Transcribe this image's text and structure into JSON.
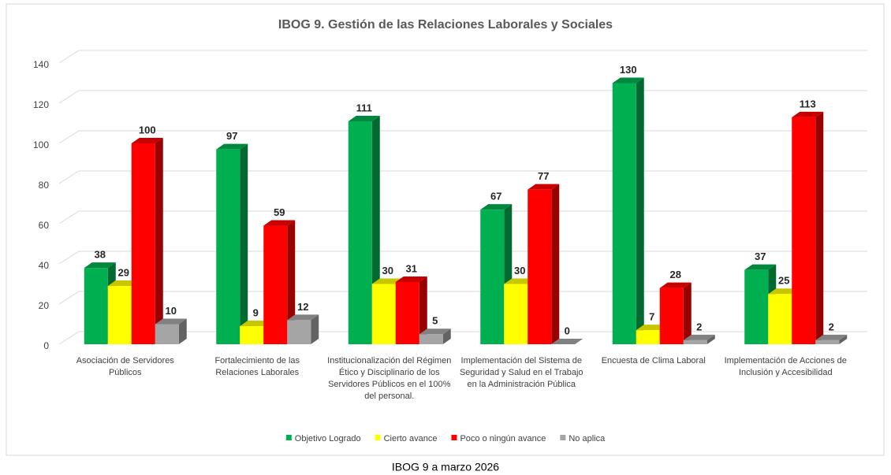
{
  "chart_data": {
    "type": "bar3d",
    "title": "IBOG 9. Gestión de las Relaciones Laborales y Sociales",
    "caption": "IBOG 9 a marzo 2026",
    "categories": [
      "Asociación de Servidores Públicos",
      "Fortalecimiento de las Relaciones Laborales",
      "Institucionalización del Régimen Ético y Disciplinario de los Servidores Públicos en el 100% del personal.",
      "Implementación del Sistema de Seguridad y Salud en el Trabajo en la Administración Pública",
      "Encuesta de Clima Laboral",
      "Implementación de Acciones de Inclusión y Accesibilidad"
    ],
    "series": [
      {
        "name": "Objetivo Logrado",
        "color": "#00b050",
        "values": [
          38,
          97,
          111,
          67,
          130,
          37
        ]
      },
      {
        "name": "Cierto avance",
        "color": "#ffff00",
        "values": [
          29,
          9,
          30,
          30,
          7,
          25
        ]
      },
      {
        "name": "Poco o ningún avance",
        "color": "#ff0000",
        "values": [
          100,
          59,
          31,
          77,
          28,
          113
        ]
      },
      {
        "name": "No aplica",
        "color": "#a5a5a5",
        "values": [
          10,
          12,
          5,
          0,
          2,
          2
        ]
      }
    ],
    "ylim": [
      0,
      140
    ],
    "yticks": [
      0,
      20,
      40,
      60,
      80,
      100,
      120,
      140
    ],
    "grid": true,
    "legend": "bottom"
  }
}
